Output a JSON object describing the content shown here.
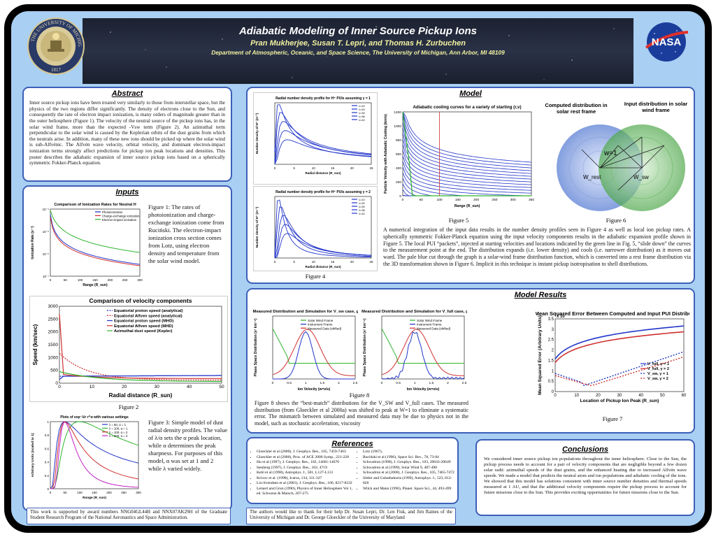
{
  "header": {
    "title": "Adiabatic Modeling of Inner Source Pickup Ions",
    "authors": "Pran Mukherjee, Susan T. Lepri, and Thomas H. Zurbuchen",
    "affiliation": "Department of Atmospheric, Oceanic, and Space Science, The University of Michigan, Ann Arbor, MI 48109",
    "left_logo": "THE UNIVERSITY OF MICHIGAN",
    "left_logo_year": "1817",
    "right_logo": "NASA",
    "colors": {
      "title": "#ffffff",
      "subtitle": "#f2f2a0",
      "background": "#a9cff2",
      "border": "#3c5fb8"
    }
  },
  "abstract": {
    "heading": "Abstract",
    "text": "Inner source pickup ions have been treated very similarly to those from interstellar space, but the physics of the two regions differ significantly. The density of electrons close to the Sun, and consequently the rate of electron impact ionization, is many orders of magnitude greater than in the outer heliosphere (Figure 1). The velocity of the neutral source of the pickup ions has, in the solar wind frame, more than the expected -Vsw term (Figure 2). An azimuthal term perpendicular to the solar wind is caused by the Keplerian orbits of the dust grains from which the neutrals arise. In addition, many of these new ions should be picked up where the solar wind is sub-Alfvénic. The Alfvén wave velocity, orbital velocity, and dominant electron-impact ionization terms strongly affect predictions for pickup ion peak locations and densities. This poster describes the adiabatic expansion of inner source pickup ions based on a spherically symmetric Fokker-Planck equation."
  },
  "inputs": {
    "heading": "Inputs",
    "fig1_text": "Figure 1: The rates of photoionization and charge-exchange ionization come from Ruciński.  The electron-impact ionization cross section comes from  Lotz, using electron density and temperature from the solar wind model.",
    "fig1_plot": {
      "title": "Comparison of Ionization Rates for Neutral H",
      "xlabel": "Range (R_sun)",
      "ylabel": "Ionization Rate (s⁻¹)",
      "legend": [
        "Photoionization",
        "Charge-exchange ionization",
        "Electron-impact ionization"
      ],
      "x_ticks": [
        "0",
        "50",
        "100",
        "150",
        "200",
        "250",
        "300"
      ],
      "y_ticks": [
        "10⁻⁷",
        "10⁻⁶",
        "10⁻⁵",
        "10⁻⁴"
      ]
    },
    "fig2_caption": "Figure 2",
    "fig2_plot": {
      "title": "Comparison of velocity components",
      "xlabel": "Radial distance (R_sun)",
      "ylabel": "Speed (km/sec)",
      "legend": [
        "Equatorial proton speed (analytical)",
        "Equatorial Alfven speed (analytical)",
        "Equatorial proton speed (MHD)",
        "Equatorial Alfven speed (MHD)",
        "Azimuthal dust speed (Kepler)"
      ],
      "x_ticks": [
        "0",
        "10",
        "20",
        "30",
        "40",
        "50"
      ],
      "y_ticks": [
        "0",
        "500",
        "1000",
        "1500",
        "2000",
        "2500",
        "3000"
      ]
    },
    "fig3_text": "Figure 3: Simple model of dust radial density profiles. The value of λ/α sets the α peak location, while α determines the peak sharpness.  For purposes of this model, α was set at 1 and 2 while λ varied widely.",
    "fig3_plot": {
      "title": "Plots of exp⁻λ/r r^α with various settings",
      "xlabel": "Range (R_sun)",
      "ylabel": "Arbitrary Units (scaled to 1)",
      "legend": [
        "λ = 50, α = 1",
        "λ = 100, α = 1",
        "λ = 100, α = 2",
        "λ = 200, α = 4"
      ],
      "x_ticks": [
        "0",
        "50",
        "100",
        "150",
        "200",
        "250",
        "300"
      ],
      "y_ticks": [
        "0",
        "0.2",
        "0.4",
        "0.6",
        "0.8",
        "1"
      ]
    }
  },
  "model": {
    "heading": "Model",
    "fig4_caption": "Figure 4",
    "fig4_top": {
      "title": "Radial number density profile for H⁺ PUIs assuming γ = 1",
      "xlabel": "Radial distance (R_sun)",
      "ylabel": "Number density of H⁺ (m⁻³)",
      "legend": [
        "λ=10",
        "λ=20",
        "λ=30",
        "λ=36",
        "λ=42"
      ],
      "x_ticks": [
        "0",
        "5",
        "10",
        "15",
        "20",
        "25"
      ]
    },
    "fig4_bottom": {
      "title": "Radial number density profile for H⁺ PUIs assuming γ = 2",
      "xlabel": "Radial distance (R_sun)",
      "ylabel": "Number density of H⁺ (m⁻³)",
      "legend": [
        "λ=10",
        "λ=20",
        "λ=30",
        "λ=36",
        "λ=42"
      ],
      "x_ticks": [
        "0",
        "5",
        "10",
        "15",
        "20",
        "25"
      ]
    },
    "fig5_caption": "Figure 5",
    "fig5_plot": {
      "title": "Adiabatic cooling curves for a variety of starting (r,v)",
      "xlabel": "Range (R_sun)",
      "ylabel": "Particle Velocity with Adiabatic Cooling (km/s)",
      "x_ticks": [
        "0",
        "50",
        "100",
        "150",
        "200",
        "250",
        "300",
        "350"
      ],
      "y_ticks": [
        "0",
        "200",
        "400",
        "600",
        "800",
        "1000",
        "1200"
      ]
    },
    "fig6_caption": "Figure 6",
    "fig6_labels": {
      "left": "Computed distribution in solar rest frame",
      "right": "Input distribution in solar wind frame",
      "w": "w=1",
      "wrest": "W_rest",
      "wsw": "W_sw"
    },
    "text": "A numerical integration of the input data results in the number density profiles seen in Figure 4 as well as local ion pickup rates.  A spherically symmetric Fokker-Planck equation using the input velocity components results in the adiabatic expansion profile shown in Figure 5.  The local PUI “packets”, injected at starting velocities and locations indicated by the green line in Fig. 5, “slide down” the curves to the measurement point at the end.  The distribution expands (i.e. lower density) and cools (i.e. narrower distribution) as it moves out ward. The pale blue cut through the graph is a solar-wind frame distribution function, which is converted into a rest frame distribution via the 3D transformation shown in Figure 6.  Implicit in this technique is instant pickup isotropisation to shell distributions."
  },
  "results": {
    "heading": "Model Results",
    "fig8_caption": "Figure 8",
    "fig8a": {
      "title": "Measured Distribution and Simulation for V_sw case, gamma=2",
      "xlabel": "Ion Velocity (w=v/u)",
      "ylabel": "Phase Space Distribution (s³ km⁻⁶)",
      "legend": [
        "Solar Wind Frame",
        "Instrument Frame",
        "Measured Data (shifted)"
      ],
      "x_ticks": [
        "0",
        "0.5",
        "1",
        "1.5",
        "2",
        "2.5"
      ]
    },
    "fig8b": {
      "title": "Measured Distribution and Simulation for V_full case, gamma=2",
      "xlabel": "Ion Velocity (w=v/u)",
      "ylabel": "Phase Space Distribution (s³ km⁻⁶)",
      "legend": [
        "Solar Wind Frame",
        "Instrument Frame",
        "Measured Data (shifted)"
      ],
      "x_ticks": [
        "0",
        "0.5",
        "1",
        "1.5",
        "2",
        "2.5"
      ]
    },
    "text": "Figure 8 shows the “best-match” distributions for the V_SW and V_full cases.  The measured distribution (from Gloeckler et al 2000a) was shifted to peak at W=1 to eliminate a systematic error.  The mismatch between simulated and measured data may be due to physics not in the model, such as stochastic acceleration, viscosity",
    "fig7_caption": "Figure 7",
    "fig7_plot": {
      "title": "Mean Squared Error Between Computed and Input PUI Distributions",
      "xlabel": "Location of Pickup Ion Peak (R_sun)",
      "ylabel": "Mean Squared Error (Arbitrary Units)",
      "exponent": "x 10",
      "legend": [
        "V_full, γ = 1",
        "V_full, γ = 2",
        "V_sw, γ = 1",
        "V_sw, γ = 2"
      ],
      "x_ticks": [
        "0",
        "10",
        "20",
        "30",
        "40",
        "50",
        "60"
      ],
      "y_ticks": [
        "0",
        "0.5",
        "1",
        "1.5",
        "2",
        "2.5",
        "3",
        "3.5"
      ]
    }
  },
  "references": {
    "heading": "References",
    "left": [
      "Gloeckler et al (2000), J. Geophys. Res., 105, 7459-7463",
      "Gloeckler et al (2000), Proc. of ACE 2000 Symp., 221-228",
      "Hu et al (1997), J. Geophys. Res., 102, 14661-14676",
      "Isenberg (1997), J. Geophys. Res., 102, 4719",
      "Kehl et al (1998), Astrophys. J., 501, L127-L131",
      "Krivov et al. (1998), Icarus, 134, 311-327",
      "Liu-Svendsen et al (2001), J. Geophys. Res., 106, 8217-8232",
      "Leinert and Grun (1990), Physics of Inner Heliosphere Vol 1, ed. Schwenn & Marsch, 207-275"
    ],
    "right": [
      "Lotz (1967),",
      "Ruciński et al (1996), Space Sci. Rev., 78, 73-84",
      "Schwadron (1998), J. Geophys. Res., 103, 20643-20649",
      "Schwadron et al (1999), Solar Wind 9, 487-490",
      "Schwadron et al (2000), J. Geophys. Res., 105, 7465-7472",
      "Sittler and Guhathakurta (1999), Astrophys. J., 523, 812-826",
      "Wilck and Mann (1996), Planet. Space Sci., 44, 493-499"
    ]
  },
  "conclusions": {
    "heading": "Conclusions",
    "text": "We considered inner source pickup ion populations throughout the inner heliosphere.  Close to the Sun, the pickup process needs to account for a pair of velocity components that are negligible beyond a few dozen solar radii: azimuthal speeds of the dust grains, and the enhanced heating due to increased Alfvén wave speeds.  We made a model that predicts the neutral atom and ion populations and adiabatic cooling of the ions.  We showed that this model has solutions consistent with inner source number densities and thermal speeds measured at 1 AU, and that the additional velocity components require the pickup process to account for future missions close to the Sun.  This provides exciting opportunities for future missions close to the Sun."
  },
  "acknowledgments": {
    "funding": "This work is supported by award numbers NNG04GL44H and NNX07AK29H of the Graduate Student Research Program of the National Aeronautics and Space Administration.",
    "thanks": "The authors would like to thank for their help Dr. Susan Lepri, Dr. Len Fisk, and Jim Raines of the University of Michigan and Dr. George Gloeckler of the University of Maryland"
  }
}
